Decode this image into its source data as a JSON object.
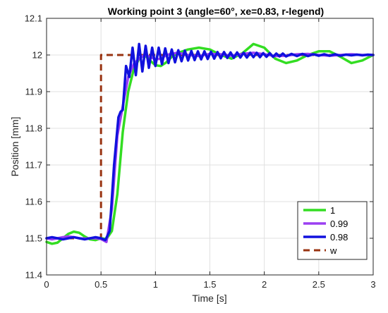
{
  "chart_data": {
    "type": "line",
    "title": "Working point 3  (angle=60°, xe=0.83, r-legend)",
    "xlabel": "Time [s]",
    "ylabel": "Position [mm]",
    "xlim": [
      0,
      3
    ],
    "ylim": [
      11.4,
      12.1
    ],
    "xticks": [
      0,
      0.5,
      1,
      1.5,
      2,
      2.5,
      3
    ],
    "xtick_labels": [
      "0",
      "0.5",
      "1",
      "1.5",
      "2",
      "2.5",
      "3"
    ],
    "yticks": [
      11.4,
      11.5,
      11.6,
      11.7,
      11.8,
      11.9,
      12,
      12.1
    ],
    "ytick_labels": [
      "11.4",
      "11.5",
      "11.6",
      "11.7",
      "11.8",
      "11.9",
      "12",
      "12.1"
    ],
    "grid": true,
    "legend_position": "bottom-right",
    "series": [
      {
        "name": "1",
        "color": "#33dd22",
        "style": "solid",
        "x": [
          0,
          0.05,
          0.1,
          0.15,
          0.2,
          0.25,
          0.3,
          0.35,
          0.4,
          0.45,
          0.5,
          0.55,
          0.6,
          0.65,
          0.7,
          0.75,
          0.8,
          0.85,
          0.9,
          0.95,
          1.0,
          1.05,
          1.1,
          1.15,
          1.2,
          1.3,
          1.4,
          1.5,
          1.6,
          1.7,
          1.8,
          1.9,
          2.0,
          2.1,
          2.2,
          2.3,
          2.4,
          2.5,
          2.6,
          2.7,
          2.8,
          2.9,
          3.0
        ],
        "y": [
          11.49,
          11.485,
          11.488,
          11.5,
          11.512,
          11.518,
          11.515,
          11.505,
          11.497,
          11.495,
          11.5,
          11.498,
          11.52,
          11.62,
          11.79,
          11.9,
          11.96,
          11.99,
          12.0,
          11.985,
          11.972,
          11.97,
          11.98,
          11.995,
          12.005,
          12.015,
          12.02,
          12.015,
          12.0,
          11.99,
          12.005,
          12.03,
          12.02,
          11.99,
          11.978,
          11.985,
          12.0,
          12.01,
          12.01,
          11.995,
          11.978,
          11.985,
          12.0
        ]
      },
      {
        "name": "0.99",
        "color": "#9b3ff2",
        "style": "solid",
        "x": [
          0,
          0.05,
          0.1,
          0.15,
          0.2,
          0.25,
          0.3,
          0.35,
          0.4,
          0.45,
          0.5,
          0.55,
          0.6,
          0.65,
          0.7,
          0.75,
          0.8,
          0.85,
          0.9,
          0.95,
          1.0,
          1.05,
          1.1,
          1.2,
          1.3,
          1.4,
          1.5,
          1.6,
          1.7,
          1.8,
          1.9,
          2.0,
          2.1,
          2.2,
          2.3,
          2.4,
          2.5,
          2.6,
          2.7,
          2.8,
          2.9,
          3.0
        ],
        "y": [
          11.5,
          11.497,
          11.5,
          11.503,
          11.505,
          11.503,
          11.5,
          11.499,
          11.5,
          11.5,
          11.498,
          11.49,
          11.58,
          11.78,
          11.86,
          11.94,
          11.975,
          11.99,
          12.0,
          11.995,
          11.988,
          11.99,
          12.0,
          12.006,
          12.0,
          11.997,
          12.003,
          12.002,
          11.998,
          12.003,
          12.006,
          12.002,
          11.997,
          11.998,
          12.002,
          12.003,
          12.0,
          11.998,
          12.0,
          12.002,
          12.0,
          12.0
        ]
      },
      {
        "name": "0.98",
        "color": "#1111dd",
        "style": "solid",
        "x": [
          0,
          0.05,
          0.1,
          0.15,
          0.2,
          0.25,
          0.3,
          0.35,
          0.4,
          0.45,
          0.5,
          0.54,
          0.58,
          0.62,
          0.66,
          0.68,
          0.7,
          0.73,
          0.76,
          0.79,
          0.82,
          0.85,
          0.88,
          0.91,
          0.94,
          0.97,
          1.0,
          1.03,
          1.06,
          1.09,
          1.12,
          1.15,
          1.18,
          1.21,
          1.24,
          1.27,
          1.3,
          1.33,
          1.36,
          1.39,
          1.42,
          1.45,
          1.48,
          1.51,
          1.54,
          1.57,
          1.6,
          1.63,
          1.66,
          1.69,
          1.72,
          1.75,
          1.78,
          1.81,
          1.84,
          1.87,
          1.9,
          1.93,
          1.96,
          1.99,
          2.02,
          2.05,
          2.08,
          2.11,
          2.14,
          2.17,
          2.2,
          2.25,
          2.3,
          2.35,
          2.4,
          2.45,
          2.5,
          2.55,
          2.6,
          2.65,
          2.7,
          2.75,
          2.8,
          2.85,
          2.9,
          2.95,
          3.0
        ],
        "y": [
          11.5,
          11.503,
          11.5,
          11.497,
          11.5,
          11.503,
          11.5,
          11.497,
          11.5,
          11.503,
          11.5,
          11.495,
          11.52,
          11.7,
          11.83,
          11.845,
          11.85,
          11.97,
          11.94,
          12.02,
          11.945,
          12.03,
          11.955,
          12.025,
          11.965,
          12.02,
          11.97,
          12.02,
          11.975,
          12.018,
          11.978,
          12.015,
          11.98,
          12.013,
          11.983,
          12.012,
          11.985,
          12.011,
          11.986,
          12.01,
          11.988,
          12.01,
          11.989,
          12.009,
          11.99,
          12.008,
          11.991,
          12.008,
          11.992,
          12.007,
          11.992,
          12.007,
          11.993,
          12.006,
          11.993,
          12.006,
          11.994,
          12.006,
          11.994,
          12.005,
          11.995,
          12.005,
          11.995,
          12.004,
          11.996,
          12.004,
          11.996,
          12.003,
          11.997,
          12.003,
          11.997,
          12.002,
          11.998,
          12.002,
          11.998,
          12.002,
          11.998,
          12.001,
          11.999,
          12.001,
          11.999,
          12.001,
          12.0
        ]
      },
      {
        "name": "w",
        "color": "#993311",
        "style": "dashed",
        "x": [
          0,
          0.5,
          0.5,
          3.0
        ],
        "y": [
          11.5,
          11.5,
          12.0,
          12.0
        ]
      }
    ]
  }
}
